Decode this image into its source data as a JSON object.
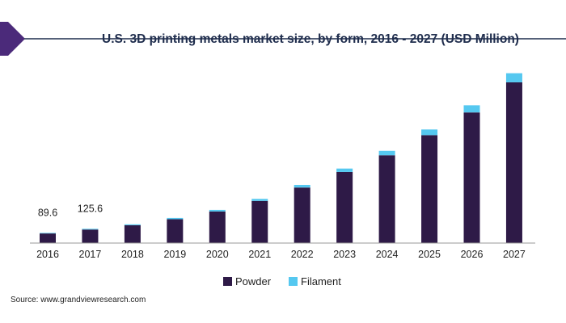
{
  "colors": {
    "powder": "#2e1a47",
    "filament": "#55c8f0",
    "accent_purple": "#4b2a7a",
    "title_rule": "#1f2d4d",
    "axis": "#999999"
  },
  "chart_data": {
    "type": "bar",
    "stacked": true,
    "title": "U.S. 3D printing metals market size, by form, 2016 - 2027 (USD Million)",
    "categories": [
      "2016",
      "2017",
      "2018",
      "2019",
      "2020",
      "2021",
      "2022",
      "2023",
      "2024",
      "2025",
      "2026",
      "2027"
    ],
    "series": [
      {
        "name": "Powder",
        "values": [
          84.5,
          119,
          157,
          210,
          278,
          371,
          489,
          626,
          773,
          950,
          1150,
          1415
        ]
      },
      {
        "name": "Filament",
        "values": [
          5.1,
          6.6,
          8,
          11,
          14,
          18,
          23,
          30,
          39,
          50,
          63,
          80
        ]
      }
    ],
    "data_labels": [
      {
        "category": "2016",
        "text": "89.6"
      },
      {
        "category": "2017",
        "text": "125.6"
      }
    ],
    "ylim": [
      0,
      1500
    ],
    "grid": false,
    "legend_position": "bottom-center",
    "xlabel": "",
    "ylabel": ""
  },
  "footer": {
    "source": "Source: www.grandviewresearch.com"
  }
}
